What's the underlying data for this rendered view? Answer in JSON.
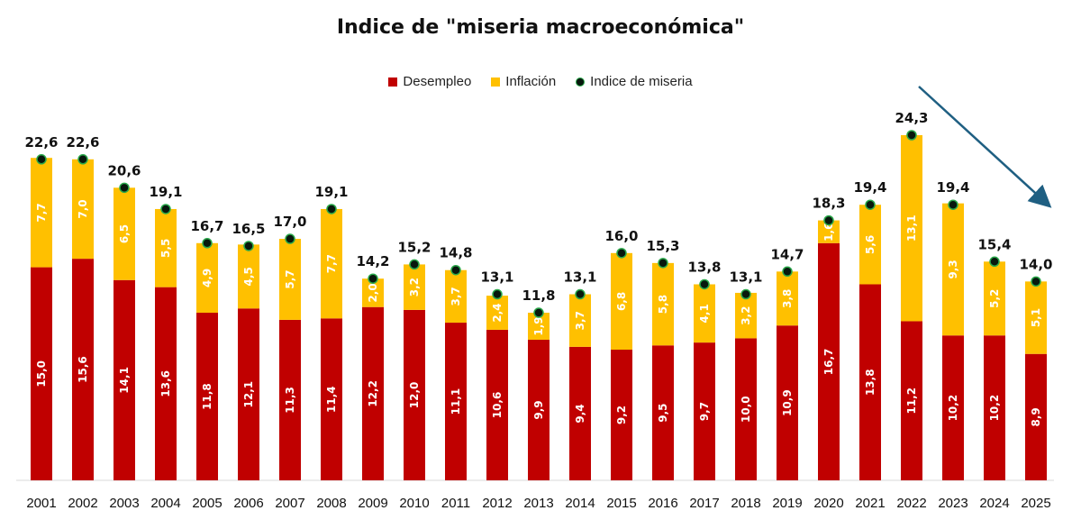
{
  "chart_data": {
    "type": "bar",
    "title": "Indice de \"miseria macroeconómica\"",
    "categories": [
      "2001",
      "2002",
      "2003",
      "2004",
      "2005",
      "2006",
      "2007",
      "2008",
      "2009",
      "2010",
      "2011",
      "2012",
      "2013",
      "2014",
      "2015",
      "2016",
      "2017",
      "2018",
      "2019",
      "2020",
      "2021",
      "2022",
      "2023",
      "2024",
      "2025"
    ],
    "series": [
      {
        "name": "Desempleo",
        "color": "#c00000",
        "values": [
          15.0,
          15.6,
          14.1,
          13.6,
          11.8,
          12.1,
          11.3,
          11.4,
          12.2,
          12.0,
          11.1,
          10.6,
          9.9,
          9.4,
          9.2,
          9.5,
          9.7,
          10.0,
          10.9,
          16.7,
          13.8,
          11.2,
          10.2,
          10.2,
          8.9
        ],
        "labels": [
          "15,0",
          "15,6",
          "14,1",
          "13,6",
          "11,8",
          "12,1",
          "11,3",
          "11,4",
          "12,2",
          "12,0",
          "11,1",
          "10,6",
          "9,9",
          "9,4",
          "9,2",
          "9,5",
          "9,7",
          "10,0",
          "10,9",
          "16,7",
          "13,8",
          "11,2",
          "10,2",
          "10,2",
          "8,9"
        ]
      },
      {
        "name": "Inflación",
        "color": "#ffc000",
        "values": [
          7.7,
          7.0,
          6.5,
          5.5,
          4.9,
          4.5,
          5.7,
          7.7,
          2.0,
          3.2,
          3.7,
          2.4,
          1.9,
          3.7,
          6.8,
          5.8,
          4.1,
          3.2,
          3.8,
          1.6,
          5.6,
          13.1,
          9.3,
          5.2,
          5.1
        ],
        "labels": [
          "7,7",
          "7,0",
          "6,5",
          "5,5",
          "4,9",
          "4,5",
          "5,7",
          "7,7",
          "2,0",
          "3,2",
          "3,7",
          "2,4",
          "1,9",
          "3,7",
          "6,8",
          "5,8",
          "4,1",
          "3,2",
          "3,8",
          "1,6",
          "5,6",
          "13,1",
          "9,3",
          "5,2",
          "5,1"
        ]
      },
      {
        "name": "Indice de miseria",
        "marker": "dot",
        "values": [
          22.6,
          22.6,
          20.6,
          19.1,
          16.7,
          16.5,
          17.0,
          19.1,
          14.2,
          15.2,
          14.8,
          13.1,
          11.8,
          13.1,
          16.0,
          15.3,
          13.8,
          13.1,
          14.7,
          18.3,
          19.4,
          24.3,
          19.4,
          15.4,
          14.0
        ],
        "labels": [
          "22,6",
          "22,6",
          "20,6",
          "19,1",
          "16,7",
          "16,5",
          "17,0",
          "19,1",
          "14,2",
          "15,2",
          "14,8",
          "13,1",
          "11,8",
          "13,1",
          "16,0",
          "15,3",
          "13,8",
          "13,1",
          "14,7",
          "18,3",
          "19,4",
          "24,3",
          "19,4",
          "15,4",
          "14,0"
        ]
      }
    ],
    "xlabel": "",
    "ylabel": "",
    "ylim": [
      0,
      24.3
    ],
    "grid": false,
    "legend_position": "top-center",
    "annotation": "downward-trend-arrow",
    "arrow_color": "#1f5f82"
  }
}
